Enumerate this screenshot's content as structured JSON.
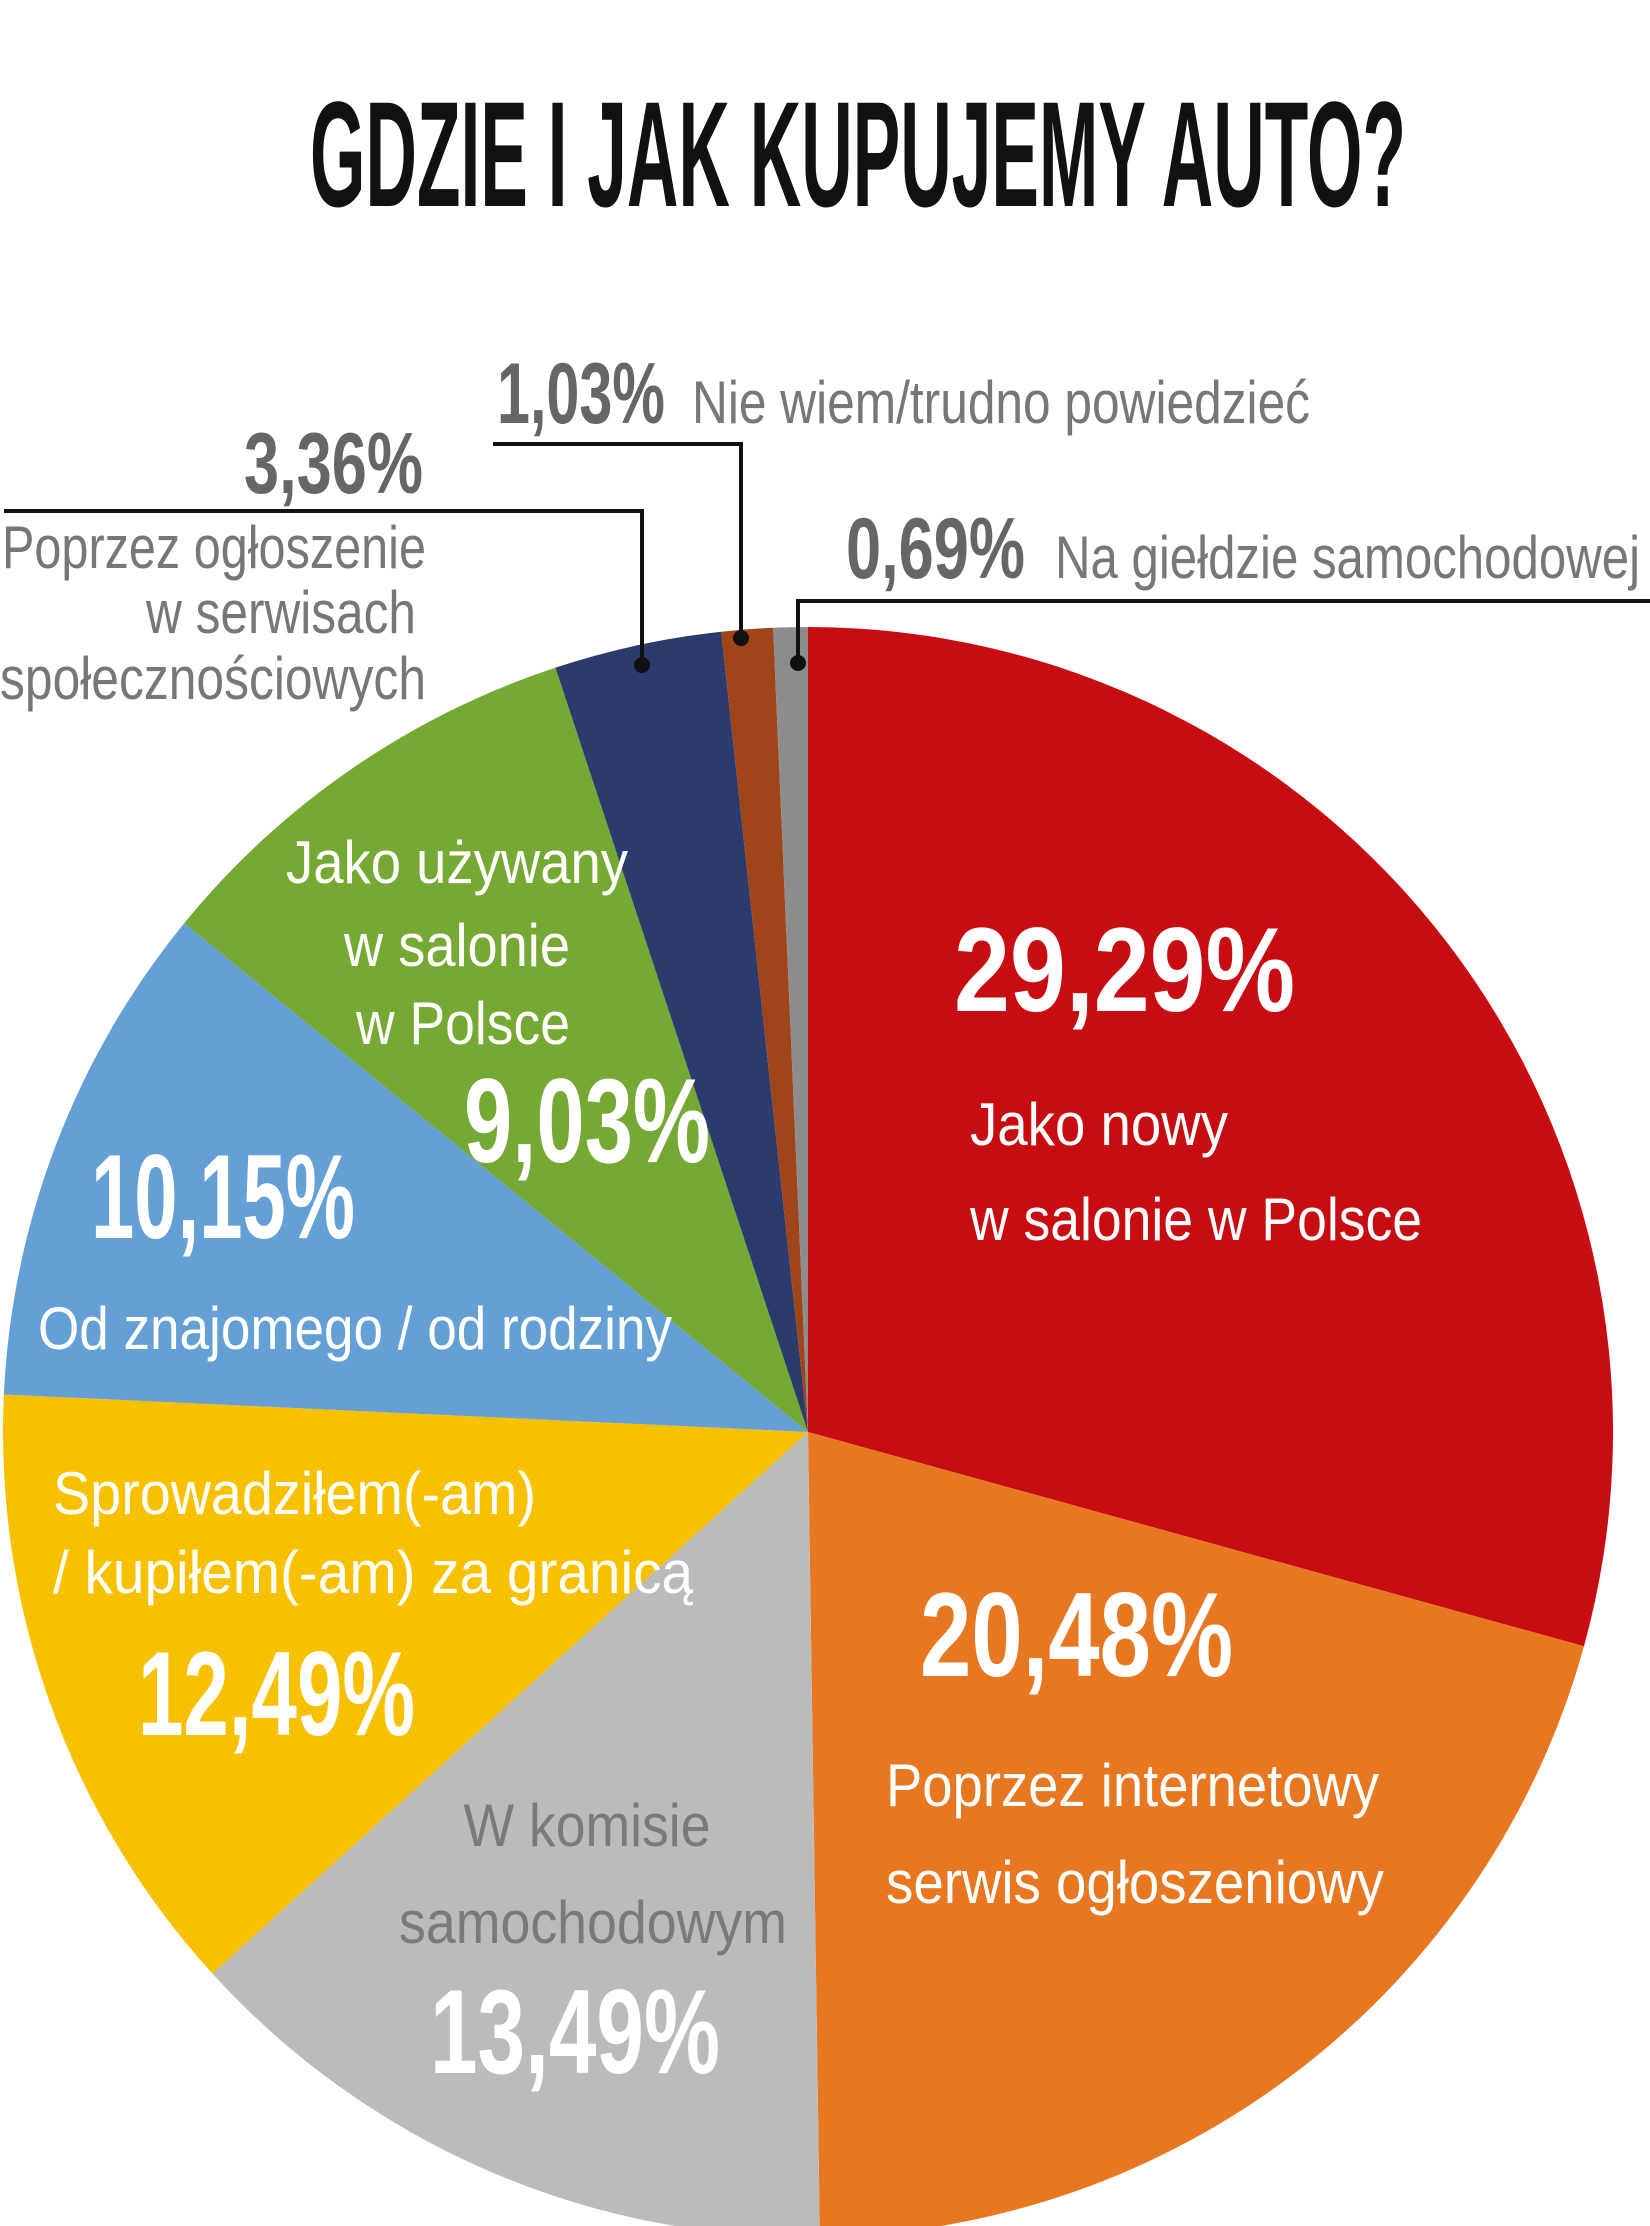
{
  "chart_data": {
    "type": "pie",
    "title": "GDZIE I JAK KUPUJEMY AUTO?",
    "start": "top",
    "direction": "clockwise",
    "slices": [
      {
        "label": [
          "Jako nowy",
          "w salonie w Polsce"
        ],
        "value": 29.29,
        "value_label": "29,29%",
        "color": "#c70c12"
      },
      {
        "label": [
          "Poprzez internetowy",
          "serwis ogłoszeniowy"
        ],
        "value": 20.48,
        "value_label": "20,48%",
        "color": "#e87722"
      },
      {
        "label": [
          "W komisie",
          "samochodowym"
        ],
        "value": 13.49,
        "value_label": "13,49%",
        "color": "#bbbbba"
      },
      {
        "label": [
          "Sprowadziłem(-am)",
          "/ kupiłem(-am) za granicą"
        ],
        "value": 12.49,
        "value_label": "12,49%",
        "color": "#f8c100"
      },
      {
        "label": [
          "Od znajomego / od rodziny"
        ],
        "value": 10.15,
        "value_label": "10,15%",
        "color": "#649fd5"
      },
      {
        "label": [
          "Jako używany",
          "w salonie",
          "w Polsce"
        ],
        "value": 9.03,
        "value_label": "9,03%",
        "color": "#76a834"
      },
      {
        "label": [
          "Poprzez ogłoszenie",
          "w serwisach",
          "społecznościowych"
        ],
        "value": 3.36,
        "value_label": "3,36%",
        "color": "#2b3b6e"
      },
      {
        "label": [
          "Nie wiem/trudno powiedzieć"
        ],
        "value": 1.03,
        "value_label": "1,03%",
        "color": "#a0441a"
      },
      {
        "label": [
          "Na giełdzie samochodowej"
        ],
        "value": 0.69,
        "value_label": "0,69%",
        "color": "#8c8c8c"
      }
    ]
  }
}
